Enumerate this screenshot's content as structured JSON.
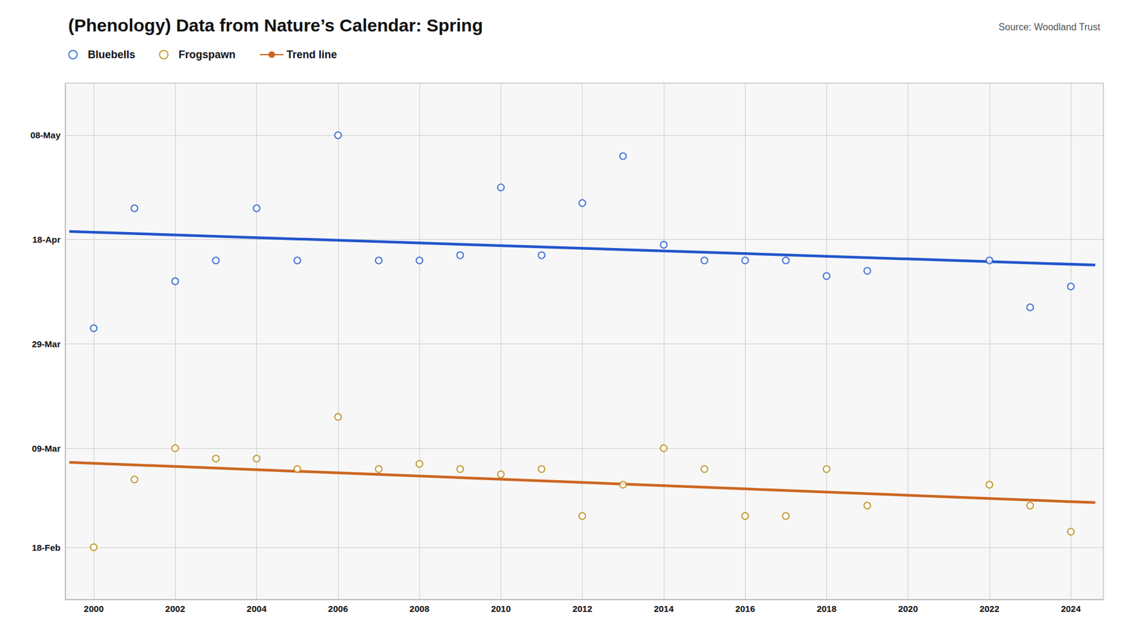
{
  "chart_data": {
    "type": "scatter",
    "title": "(Phenology) Data from Nature’s Calendar: Spring",
    "subtitle": "Source: Woodland Trust",
    "x": [
      2000,
      2001,
      2002,
      2003,
      2004,
      2005,
      2006,
      2007,
      2008,
      2009,
      2010,
      2011,
      2012,
      2013,
      2014,
      2015,
      2016,
      2017,
      2018,
      2019,
      2020,
      2021,
      2022,
      2023,
      2024
    ],
    "series": [
      {
        "name": "Bluebells",
        "type": "scatter",
        "marker": "open_circle",
        "color": "#1a56cc",
        "values": [
          91,
          114,
          100,
          104,
          114,
          104,
          128,
          104,
          104,
          105,
          118,
          105,
          115,
          124,
          107,
          104,
          104,
          104,
          101,
          102,
          null,
          null,
          104,
          95,
          99
        ]
      },
      {
        "name": "Frogspawn",
        "type": "scatter",
        "marker": "open_circle",
        "color": "#b8860b",
        "values": [
          49,
          62,
          68,
          66,
          66,
          64,
          74,
          64,
          65,
          64,
          63,
          64,
          55,
          61,
          68,
          64,
          55,
          55,
          64,
          57,
          null,
          null,
          61,
          57,
          52
        ]
      },
      {
        "type": "line",
        "color": "#2255cc",
        "x": [
          1999.4,
          2024.6
        ],
        "values": [
          109.55,
          103.11
        ]
      },
      {
        "name": "Trend line",
        "type": "line",
        "color": "#cc6622",
        "x": [
          1999.4,
          2024.6
        ],
        "values": [
          65.29,
          57.57
        ]
      }
    ],
    "xlim": [
      1999.3,
      2024.8
    ],
    "xticks": [
      2000,
      2002,
      2004,
      2006,
      2008,
      2010,
      2012,
      2014,
      2016,
      2018,
      2020,
      2022,
      2024
    ],
    "ylim": [
      39,
      138
    ],
    "yticks": [
      {
        "value": 49,
        "label": "18-Feb"
      },
      {
        "value": 68,
        "label": "09-Mar"
      },
      {
        "value": 88,
        "label": "29-Mar"
      },
      {
        "value": 108,
        "label": "18-Apr"
      },
      {
        "value": 128,
        "label": "08-May"
      }
    ],
    "grid": true,
    "legend": "top-left"
  }
}
